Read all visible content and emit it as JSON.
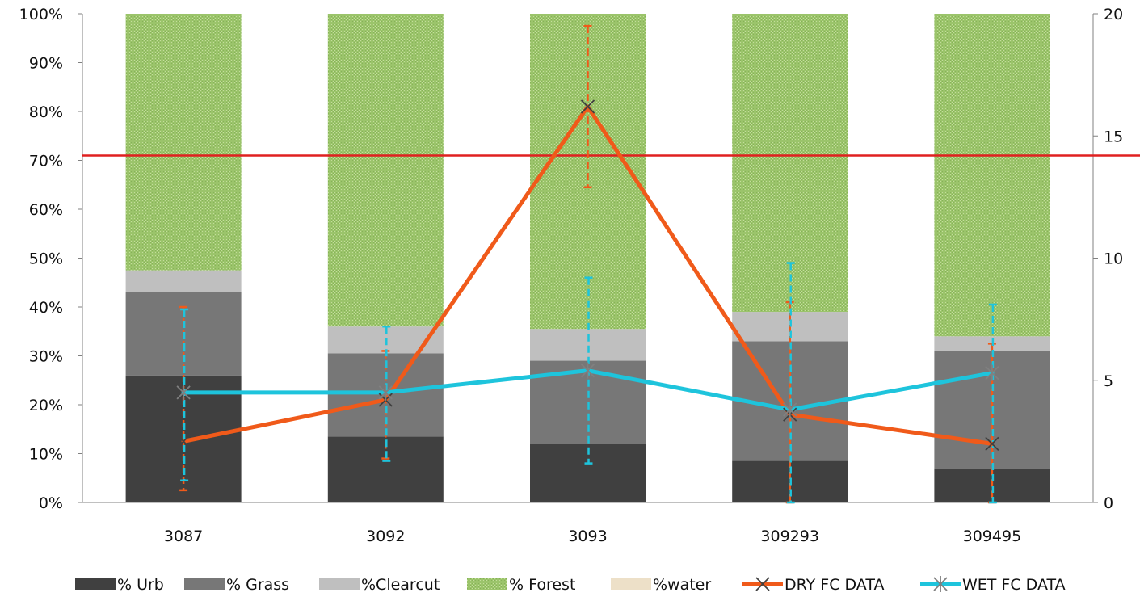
{
  "chart_data": {
    "type": "bar",
    "subtype": "stacked-percent-bar with line overlay on secondary axis",
    "categories": [
      "3087",
      "3092",
      "3093",
      "309293",
      "309495"
    ],
    "y_left": {
      "min": 0,
      "max": 100,
      "step": 10,
      "format": "percent"
    },
    "y_right": {
      "min": 0,
      "max": 20,
      "step": 5,
      "ticks": [
        "0",
        "5",
        "10",
        "15",
        "20"
      ]
    },
    "grid": false,
    "legend_position": "bottom",
    "bar_series": [
      {
        "name": "% Urb",
        "color": "#404040",
        "pattern": "solid",
        "values": [
          26,
          13.5,
          12,
          8.5,
          7
        ]
      },
      {
        "name": "% Grass",
        "color": "#777777",
        "pattern": "solid",
        "values": [
          17,
          17,
          17,
          24.5,
          24
        ]
      },
      {
        "name": "%Clearcut",
        "color": "#bfbfbf",
        "pattern": "solid",
        "values": [
          4.5,
          5.5,
          6.5,
          6,
          3
        ]
      },
      {
        "name": "% Forest",
        "color": "#9bc46b",
        "pattern": "dotted",
        "values": [
          52.5,
          64,
          64.5,
          61,
          66
        ]
      },
      {
        "name": "%water",
        "color": "#ede0c8",
        "pattern": "solid",
        "values": [
          0,
          0,
          0,
          0,
          0
        ]
      }
    ],
    "line_series": [
      {
        "name": "DRY FC DATA",
        "color": "#f05a1a",
        "marker": "x",
        "values": [
          2.5,
          4.2,
          16.2,
          3.6,
          2.4
        ],
        "error_low": [
          0.5,
          1.8,
          12.9,
          0,
          0
        ],
        "error_high": [
          8.0,
          6.2,
          19.5,
          8.2,
          6.5
        ]
      },
      {
        "name": "WET FC DATA",
        "color": "#1ec4dc",
        "marker": "asterisk",
        "values": [
          4.5,
          4.5,
          5.4,
          3.8,
          5.3
        ],
        "error_low": [
          0.9,
          1.7,
          1.6,
          0,
          0
        ],
        "error_high": [
          7.9,
          7.2,
          9.2,
          9.8,
          8.1
        ]
      }
    ],
    "reference_line": {
      "axis": "right",
      "value": 14.2,
      "color": "#e02020"
    }
  }
}
